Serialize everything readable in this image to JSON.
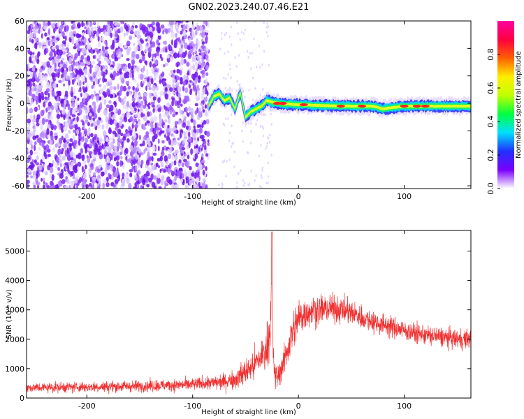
{
  "title": "GN02.2023.240.07.46.E21",
  "chart_data": [
    {
      "type": "heatmap",
      "name": "spectrogram",
      "xlabel": "Height of straight line (km)",
      "ylabel": "Frequency (Hz)",
      "xlim": [
        -257,
        163
      ],
      "ylim": [
        -62,
        60
      ],
      "x_ticks": [
        -200,
        -100,
        0,
        100
      ],
      "x_tick_labels": [
        "-200",
        "-100",
        "0",
        "100"
      ],
      "y_ticks": [
        60,
        40,
        20,
        0,
        -20,
        -40,
        -60
      ],
      "y_tick_labels": [
        "60",
        "40",
        "20",
        "0",
        "-20",
        "-40",
        "-60"
      ],
      "noise_region_x": [
        -257,
        -85
      ],
      "ridge": [
        {
          "x": -85,
          "y": -2
        },
        {
          "x": -80,
          "y": 5
        },
        {
          "x": -75,
          "y": 7
        },
        {
          "x": -70,
          "y": 2
        },
        {
          "x": -65,
          "y": 4
        },
        {
          "x": -60,
          "y": -4
        },
        {
          "x": -55,
          "y": 8
        },
        {
          "x": -50,
          "y": -10
        },
        {
          "x": -45,
          "y": -6
        },
        {
          "x": -40,
          "y": -4
        },
        {
          "x": -35,
          "y": -2
        },
        {
          "x": -30,
          "y": 2
        },
        {
          "x": -25,
          "y": 1
        },
        {
          "x": -20,
          "y": 0
        },
        {
          "x": 0,
          "y": -1
        },
        {
          "x": 40,
          "y": -2
        },
        {
          "x": 70,
          "y": -2
        },
        {
          "x": 80,
          "y": -4
        },
        {
          "x": 100,
          "y": -2
        },
        {
          "x": 112,
          "y": -2
        },
        {
          "x": 140,
          "y": -2
        },
        {
          "x": 163,
          "y": -2
        }
      ],
      "colorbar": {
        "label": "Normalized spectral amplitude",
        "range": [
          0,
          1
        ],
        "ticks": [
          0.0,
          0.2,
          0.4,
          0.6,
          0.8
        ],
        "tick_labels": [
          "0.0",
          "0.2",
          "0.4",
          "0.6",
          "0.8"
        ],
        "colors": [
          "#ffffff",
          "#7a00ff",
          "#2030ff",
          "#00e0ff",
          "#00ff40",
          "#c0ff00",
          "#ffee00",
          "#ff6000",
          "#ff0040",
          "#ff00a0"
        ]
      }
    },
    {
      "type": "line",
      "name": "snr",
      "xlabel": "Height of straight line (km)",
      "ylabel": "SNR (10 * v/v)",
      "xlim": [
        -257,
        163
      ],
      "ylim": [
        0,
        5700
      ],
      "x_ticks": [
        -200,
        -100,
        0,
        100
      ],
      "x_tick_labels": [
        "-200",
        "-100",
        "0",
        "100"
      ],
      "y_ticks": [
        0,
        1000,
        2000,
        3000,
        4000,
        5000
      ],
      "y_tick_labels": [
        "0",
        "1000",
        "2000",
        "3000",
        "4000",
        "5000"
      ],
      "line_color": "#f03030",
      "series": [
        {
          "x": [
            -257,
            -240,
            -220,
            -200,
            -180,
            -160,
            -140,
            -120,
            -100,
            -90,
            -80,
            -70,
            -60,
            -55,
            -50,
            -45,
            -40,
            -35,
            -30,
            -28,
            -26,
            -25,
            -24,
            -22,
            -20,
            -15,
            -10,
            -5,
            0,
            5,
            10,
            20,
            30,
            40,
            50,
            60,
            70,
            80,
            90,
            100,
            110,
            120,
            130,
            140,
            150,
            163
          ],
          "values": [
            350,
            360,
            370,
            380,
            390,
            400,
            420,
            440,
            460,
            500,
            520,
            560,
            650,
            760,
            900,
            1000,
            1200,
            1400,
            1700,
            2100,
            2800,
            4700,
            1500,
            700,
            700,
            1100,
            1700,
            2300,
            2700,
            2850,
            2950,
            3000,
            3050,
            3000,
            2900,
            2750,
            2600,
            2500,
            2400,
            2300,
            2200,
            2150,
            2100,
            2050,
            2000,
            2000
          ],
          "noise": [
            150,
            150,
            160,
            160,
            170,
            170,
            180,
            180,
            190,
            200,
            220,
            250,
            300,
            350,
            400,
            450,
            500,
            550,
            650,
            700,
            800,
            900,
            600,
            350,
            350,
            450,
            550,
            600,
            600,
            550,
            500,
            450,
            420,
            400,
            380,
            360,
            340,
            330,
            320,
            310,
            300,
            300,
            300,
            300,
            300,
            300
          ]
        }
      ],
      "peak": {
        "x": -25,
        "y": 5650
      }
    }
  ]
}
